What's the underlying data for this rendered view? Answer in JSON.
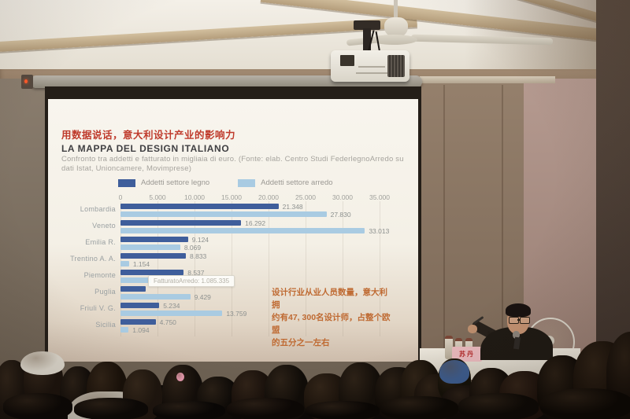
{
  "slide": {
    "header_cn": "用数据说话，意大利设计产业的影响力",
    "tooltip_text": "FatturatoArredo: 1.085.335",
    "annotation_cn_lines": [
      "设计行业从业人员数量，意大利拥",
      "约有47, 300名设计师，占整个欧盟",
      "的五分之一左右"
    ],
    "colors": {
      "header_red": "#bf3a2b",
      "annotation_orange": "#bf6a32"
    }
  },
  "chart_data": {
    "type": "bar",
    "orientation": "horizontal",
    "title": "LA MAPPA DEL DESIGN ITALIANO",
    "subtitle_lines": [
      "Confronto tra addetti e fatturato in migliaia di euro. (Fonte: elab. Centro Studi FederlegnoArredo su",
      "dati Istat, Unioncamere, Movimprese)"
    ],
    "categories": [
      "Lombardia",
      "Veneto",
      "Emilia R.",
      "Trentino A. A.",
      "Piemonte",
      "Puglia",
      "Friuli V. G.",
      "Sicilia"
    ],
    "series": [
      {
        "name": "Addetti settore legno",
        "color": "#3f5e9b",
        "values": [
          21348,
          16292,
          9124,
          8833,
          8537,
          3400,
          5234,
          4750
        ],
        "labels": [
          "21.348",
          "16.292",
          "9.124",
          "8.833",
          "8.537",
          "",
          "5.234",
          "4.750"
        ]
      },
      {
        "name": "Addetti settore arredo",
        "color": "#a9cbe2",
        "values": [
          27830,
          33013,
          8069,
          1154,
          4128,
          9429,
          13759,
          1094
        ],
        "labels": [
          "27.830",
          "33.013",
          "8.069",
          "1.154",
          "4.128",
          "9.429",
          "13.759",
          "1.094"
        ]
      }
    ],
    "x_ticks": [
      0,
      5000,
      10000,
      15000,
      20000,
      25000,
      30000,
      35000
    ],
    "x_tick_labels": [
      "0",
      "5.000",
      "10.000",
      "15.000",
      "20.000",
      "25.000",
      "30.000",
      "35.000"
    ],
    "xlim": [
      0,
      35000
    ],
    "legend_position": "top",
    "note": "Value label of the Puglia 'legno' bar is hidden behind a hovering tooltip in the source image"
  },
  "scene": {
    "nameplate_text": "苏丹"
  }
}
